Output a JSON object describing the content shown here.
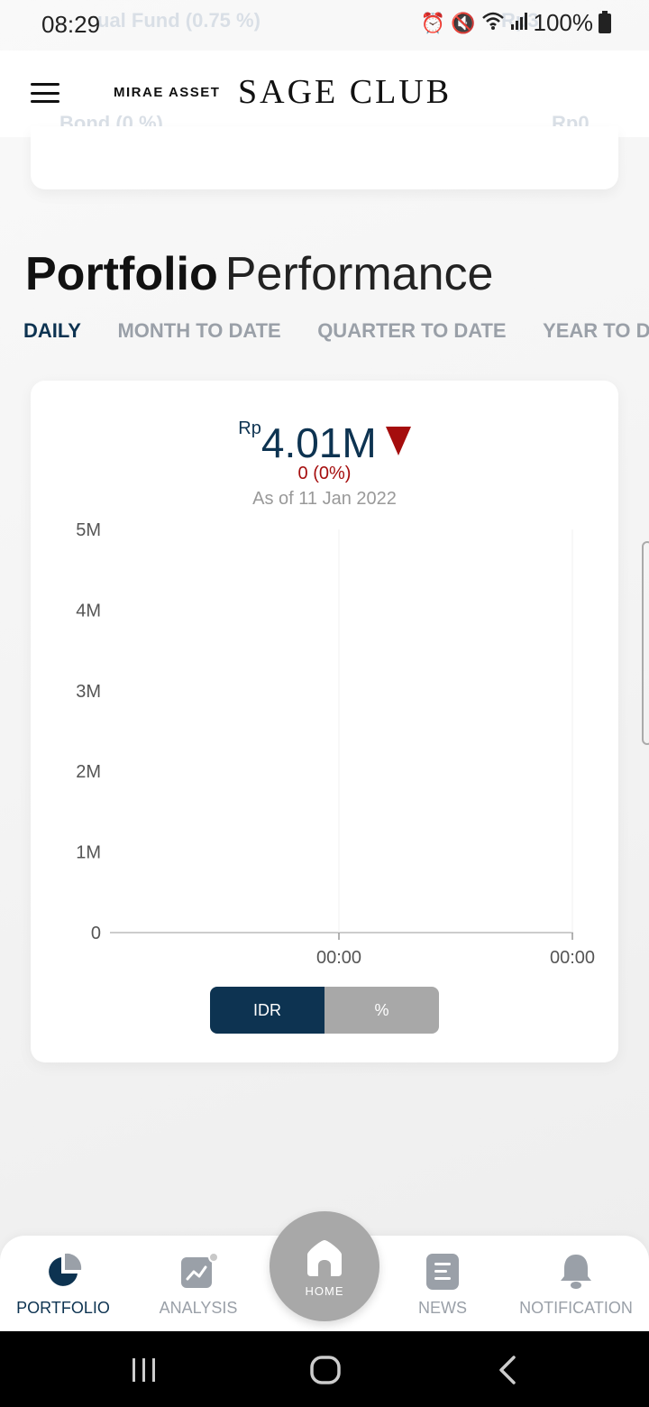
{
  "status_bar": {
    "time": "08:29",
    "battery": "100%",
    "ghost_left": "ual Fund (0.75 %)",
    "ghost_right": "Rp3"
  },
  "header": {
    "brand_small": "MIRAE ASSET",
    "brand_large": "SAGE CLUB",
    "ghost_bond": "Bond (0 %)",
    "ghost_rp0": "Rp0"
  },
  "section": {
    "title_bold": "Portfolio",
    "title_light": "Performance"
  },
  "period_tabs": [
    {
      "label": "DAILY",
      "active": true
    },
    {
      "label": "MONTH TO DATE",
      "active": false
    },
    {
      "label": "QUARTER TO DATE",
      "active": false
    },
    {
      "label": "YEAR TO DAT",
      "active": false
    }
  ],
  "summary": {
    "currency_prefix": "Rp",
    "value": "4.01M",
    "change": "0 (0%)",
    "as_of": "As of 11 Jan 2022"
  },
  "chart_data": {
    "type": "line",
    "y_ticks": [
      "0",
      "1M",
      "2M",
      "3M",
      "4M",
      "5M"
    ],
    "ylim": [
      0,
      5000000
    ],
    "x_ticks": [
      "00:00",
      "00:00"
    ],
    "series": [],
    "grid": false
  },
  "toggle": {
    "idr": "IDR",
    "pct": "%"
  },
  "bottom_nav": {
    "portfolio": "PORTFOLIO",
    "analysis": "ANALYSIS",
    "home": "HOME",
    "news": "NEWS",
    "notification": "NOTIFICATION"
  },
  "colors": {
    "primary": "#0d3351",
    "negative": "#a50d0d",
    "muted": "#9aa0a8"
  }
}
